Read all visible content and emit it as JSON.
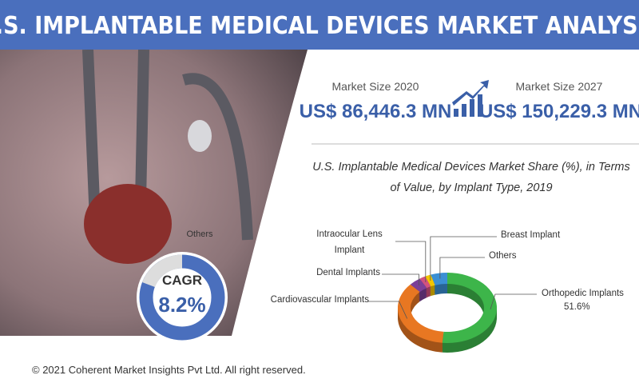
{
  "header": {
    "title": "U.S. IMPLANTABLE MEDICAL DEVICES MARKET ANALYSIS"
  },
  "market": {
    "label_2020": "Market Size 2020",
    "value_2020": "US$ 86,446.3 MN",
    "label_2027": "Market Size 2027",
    "value_2027": "US$ 150,229.3 MN"
  },
  "cagr": {
    "note": "Others",
    "label": "CAGR",
    "value": "8.2%"
  },
  "chart_data": {
    "type": "pie",
    "donut": true,
    "title": "U.S. Implantable Medical Devices Market Share (%), in Terms of Value, by Implant Type, 2019",
    "categories": [
      "Orthopedic Implants",
      "Cardiovascular Implants",
      "Dental Implants",
      "Intraocular Lens Implant",
      "Breast Implant",
      "Others"
    ],
    "values": [
      51.6,
      35,
      4,
      2,
      2,
      5.4
    ],
    "value_labels": [
      "51.6%",
      null,
      null,
      null,
      null,
      null
    ],
    "colors": [
      "#3db54a",
      "#e87722",
      "#7b3f98",
      "#d2527f",
      "#f2c500",
      "#3b8fd4"
    ]
  },
  "footer": {
    "text": "© 2021 Coherent Market Insights Pvt Ltd. All right reserved."
  }
}
